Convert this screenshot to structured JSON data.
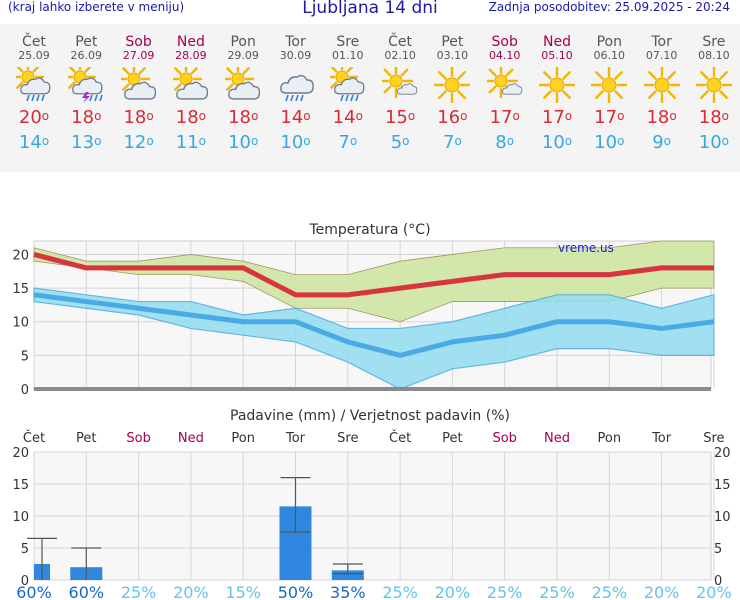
{
  "header": {
    "left": "(kraj lahko izberete v meniju)",
    "title": "Ljubljana 14 dni",
    "right": "Zadnja posodobitev: 25.09.2025 - 20:24"
  },
  "days": [
    {
      "name": "Čet",
      "date": "25.09",
      "weekend": false,
      "icon": "sun-cloud-rain-icon",
      "max": "20",
      "min": "14"
    },
    {
      "name": "Pet",
      "date": "26.09",
      "weekend": false,
      "icon": "sun-cloud-thunder-icon",
      "max": "18",
      "min": "13"
    },
    {
      "name": "Sob",
      "date": "27.09",
      "weekend": true,
      "icon": "sun-cloud-icon",
      "max": "18",
      "min": "12"
    },
    {
      "name": "Ned",
      "date": "28.09",
      "weekend": true,
      "icon": "sun-cloud-icon",
      "max": "18",
      "min": "11"
    },
    {
      "name": "Pon",
      "date": "29.09",
      "weekend": false,
      "icon": "sun-cloud-icon",
      "max": "18",
      "min": "10"
    },
    {
      "name": "Tor",
      "date": "30.09",
      "weekend": false,
      "icon": "cloud-rain-icon",
      "max": "14",
      "min": "10"
    },
    {
      "name": "Sre",
      "date": "01.10",
      "weekend": false,
      "icon": "sun-cloud-rain-icon",
      "max": "14",
      "min": "7"
    },
    {
      "name": "Čet",
      "date": "02.10",
      "weekend": false,
      "icon": "sun-small-cloud-icon",
      "max": "15",
      "min": "5"
    },
    {
      "name": "Pet",
      "date": "03.10",
      "weekend": false,
      "icon": "sun-icon",
      "max": "16",
      "min": "7"
    },
    {
      "name": "Sob",
      "date": "04.10",
      "weekend": true,
      "icon": "sun-small-cloud-icon",
      "max": "17",
      "min": "8"
    },
    {
      "name": "Ned",
      "date": "05.10",
      "weekend": true,
      "icon": "sun-icon",
      "max": "17",
      "min": "10"
    },
    {
      "name": "Pon",
      "date": "06.10",
      "weekend": false,
      "icon": "sun-icon",
      "max": "17",
      "min": "10"
    },
    {
      "name": "Tor",
      "date": "07.10",
      "weekend": false,
      "icon": "sun-icon",
      "max": "18",
      "min": "9"
    },
    {
      "name": "Sre",
      "date": "08.10",
      "weekend": false,
      "icon": "sun-icon",
      "max": "18",
      "min": "10"
    }
  ],
  "degree_symbol": "o",
  "chart_data": [
    {
      "type": "line",
      "title": "Temperatura (°C)",
      "watermark": "vreme.us",
      "ylim": [
        0,
        22
      ],
      "yticks": [
        0,
        5,
        10,
        15,
        20
      ],
      "x": [
        1,
        2,
        3,
        4,
        5,
        6,
        7,
        8,
        9,
        10,
        11,
        12,
        13,
        14
      ],
      "series": [
        {
          "values": [
            20,
            18,
            18,
            18,
            18,
            14,
            14,
            15,
            16,
            17,
            17,
            17,
            18,
            18
          ],
          "color": "#d8343d"
        },
        {
          "values": [
            14,
            13,
            12,
            11,
            10,
            10,
            7,
            5,
            7,
            8,
            10,
            10,
            9,
            10
          ],
          "color": "#4aaae6"
        }
      ],
      "max_band_upper": [
        21,
        19,
        19,
        20,
        19,
        17,
        17,
        19,
        20,
        21,
        21,
        21,
        22,
        22
      ],
      "max_band_lower": [
        19,
        18,
        17,
        17,
        16,
        12,
        12,
        10,
        13,
        13,
        13,
        13,
        15,
        15
      ],
      "min_band_upper": [
        15,
        14,
        13,
        13,
        11,
        12,
        9,
        9,
        10,
        12,
        14,
        14,
        12,
        14
      ],
      "min_band_lower": [
        13,
        12,
        11,
        9,
        8,
        7,
        4,
        0,
        3,
        4,
        6,
        6,
        5,
        5
      ],
      "grid": true
    },
    {
      "type": "bar",
      "title": "Padavine (mm) / Verjetnost padavin (%)",
      "ylim": [
        0,
        20
      ],
      "yticks": [
        0,
        5,
        10,
        15,
        20
      ],
      "categories": [
        "Čet",
        "Pet",
        "Sob",
        "Ned",
        "Pon",
        "Tor",
        "Sre",
        "Čet",
        "Pet",
        "Sob",
        "Ned",
        "Pon",
        "Tor",
        "Sre"
      ],
      "weekend": [
        false,
        false,
        true,
        true,
        false,
        false,
        false,
        false,
        false,
        true,
        true,
        false,
        false,
        false
      ],
      "values": [
        2.5,
        2,
        0,
        0,
        0,
        11.5,
        1.5,
        0,
        0,
        0,
        0,
        0,
        0,
        0
      ],
      "error_high": [
        6.5,
        5,
        null,
        null,
        null,
        16,
        2.5,
        null,
        null,
        null,
        null,
        null,
        null,
        null
      ],
      "error_low": [
        null,
        null,
        null,
        null,
        null,
        7.5,
        1,
        null,
        null,
        null,
        null,
        null,
        null,
        null
      ],
      "probability": [
        "60%",
        "60%",
        "25%",
        "20%",
        "15%",
        "50%",
        "35%",
        "25%",
        "20%",
        "25%",
        "25%",
        "25%",
        "20%",
        "20%"
      ],
      "probability_strong": [
        true,
        true,
        false,
        false,
        false,
        true,
        true,
        false,
        false,
        false,
        false,
        false,
        false,
        false
      ],
      "bar_color": "#2f87e0",
      "grid": true
    }
  ]
}
